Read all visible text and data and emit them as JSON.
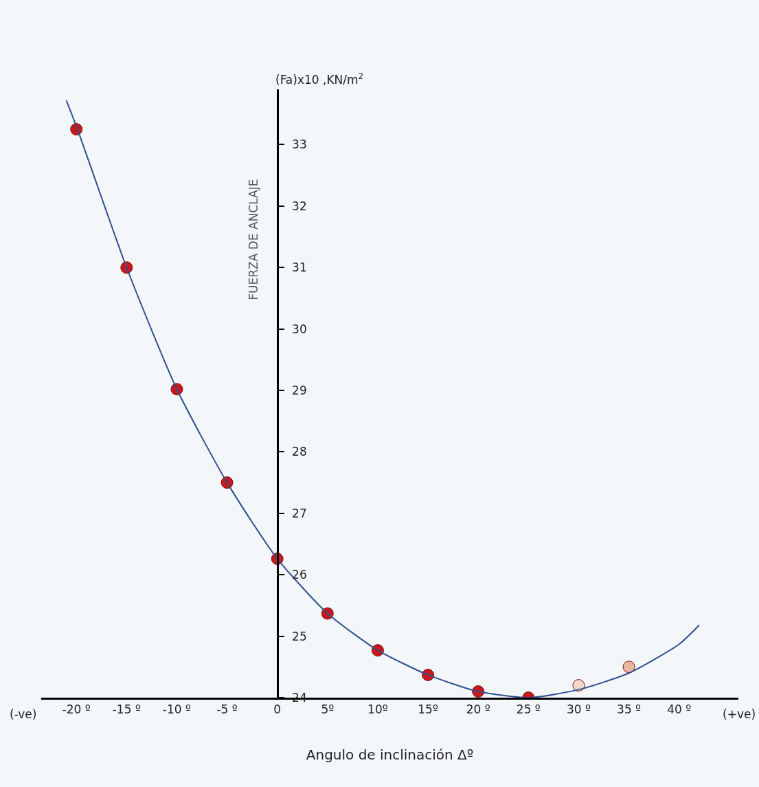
{
  "chart_data": {
    "type": "scatter",
    "xlabel": "Angulo de inclinación Δº",
    "ylabel": "FUERZA DE ANCLAJE",
    "annotations": [
      "(-ve)",
      "(+ve)",
      "(Fa)x10 ,KN/m$^{2}$"
    ],
    "series": [
      {
        "type": "line",
        "color": "#2f4f8f",
        "marker": "none",
        "x": [
          -21,
          -20,
          -15,
          -10,
          -5,
          0,
          5,
          10,
          15,
          20,
          25,
          30,
          35,
          40,
          42
        ],
        "values": [
          33.72,
          33.3,
          31.0,
          29.02,
          27.5,
          26.26,
          25.37,
          24.77,
          24.37,
          24.1,
          24.0,
          24.13,
          24.4,
          24.87,
          25.18
        ]
      },
      {
        "marker": "circle",
        "x": [
          -20,
          -15,
          -10,
          -5,
          0,
          5,
          10,
          15,
          20,
          25,
          30,
          35
        ],
        "values": [
          33.25,
          31.0,
          29.02,
          27.5,
          26.26,
          25.37,
          24.77,
          24.37,
          24.1,
          24.0,
          24.2,
          24.5
        ],
        "colors": [
          "#c8181b",
          "#c8181b",
          "#c8181b",
          "#c8181b",
          "#c8181b",
          "#c8181b",
          "#c8181b",
          "#c8181b",
          "#c8181b",
          "#c8181b",
          "#f3d8c8",
          "#eab8a0"
        ]
      }
    ],
    "xlim": [
      -23.5,
      45.9
    ],
    "xticks": [
      {
        "value": -20,
        "label": "-20 º"
      },
      {
        "value": -15,
        "label": "-15 º"
      },
      {
        "value": -10,
        "label": "-10 º"
      },
      {
        "value": -5,
        "label": "-5 º"
      },
      0,
      {
        "value": 5,
        "label": "5º"
      },
      {
        "value": 10,
        "label": "10º"
      },
      {
        "value": 15,
        "label": "15º"
      },
      {
        "value": 20,
        "label": "20 º"
      },
      {
        "value": 25,
        "label": "25 º"
      },
      {
        "value": 30,
        "label": "30 º"
      },
      {
        "value": 35,
        "label": "35 º"
      },
      {
        "value": 40,
        "label": "40 º"
      }
    ],
    "ylim": [
      24,
      33.9
    ],
    "yticks": [
      24,
      25,
      26,
      27,
      28,
      29,
      30,
      31,
      32,
      33
    ],
    "grid": false
  }
}
